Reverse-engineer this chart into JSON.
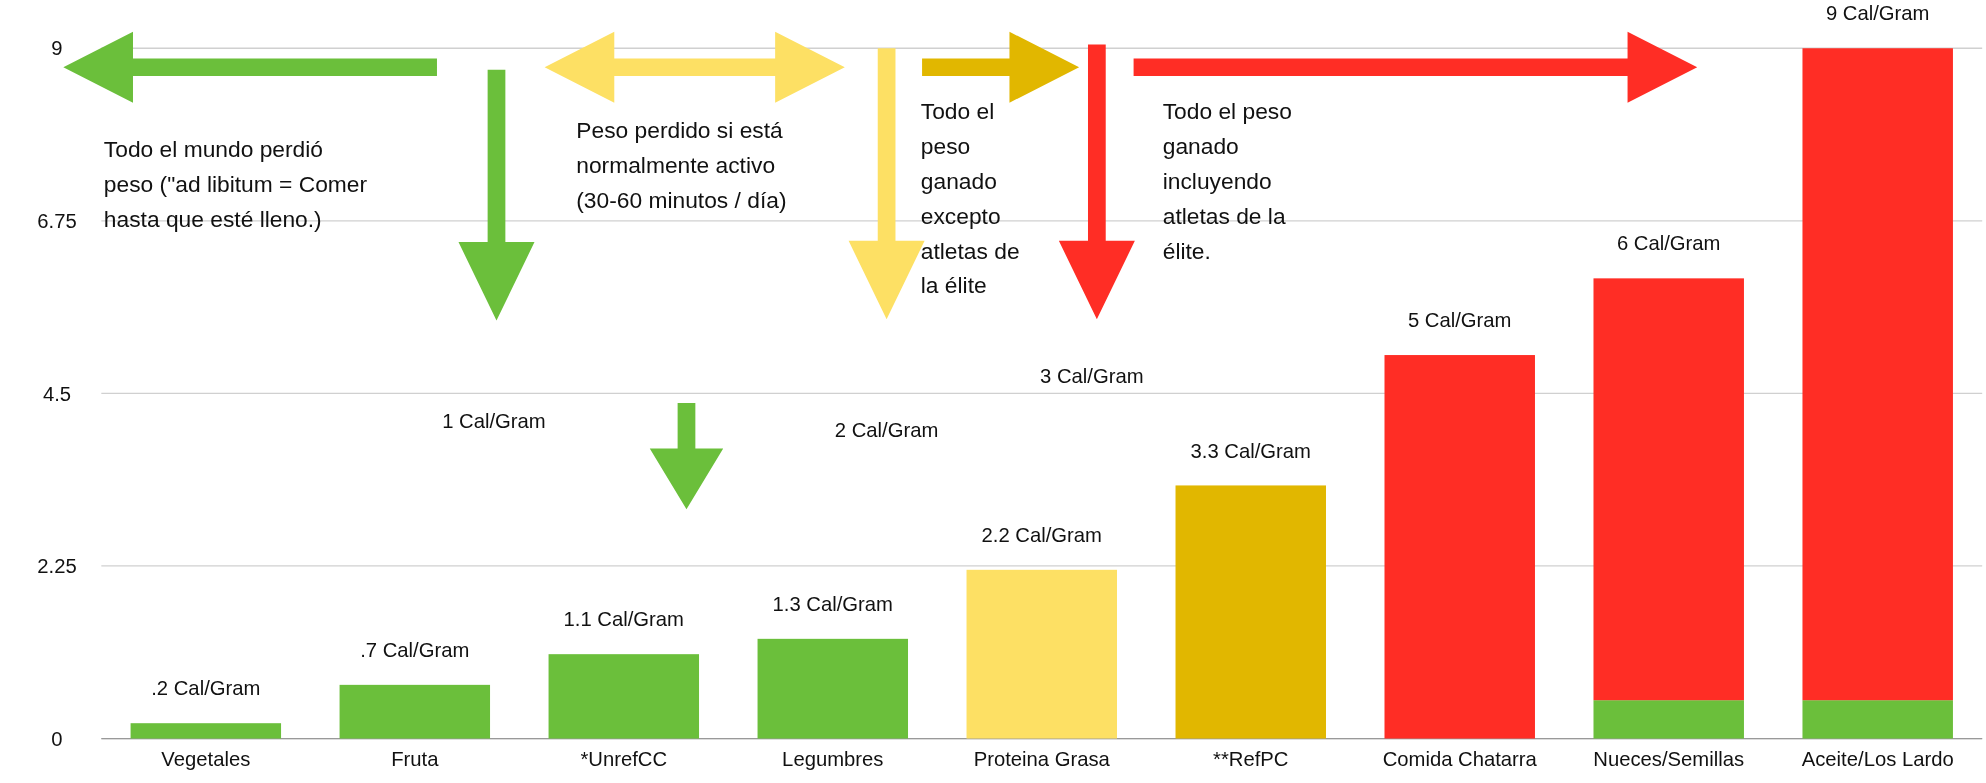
{
  "chart_data": {
    "type": "bar",
    "stacked": true,
    "categories": [
      "Vegetales",
      "Fruta",
      "*UnrefCC",
      "Legumbres",
      "Proteina Grasa",
      "**RefPC",
      "Comida Chatarra",
      "Nueces/Semillas",
      "Aceite/Los Lardo"
    ],
    "series": [
      {
        "colors": [
          "#6bbf3b",
          "#6bbf3b",
          "#6bbf3b",
          "#6bbf3b",
          "#fde064",
          "#e1b700",
          "#ff2d25",
          "#6bbf3b",
          "#6bbf3b"
        ],
        "values": [
          0.2,
          0.7,
          1.1,
          1.3,
          2.2,
          3.3,
          5,
          0.5,
          0.5
        ]
      },
      {
        "color": "#ff2d25",
        "values": [
          null,
          null,
          null,
          null,
          null,
          null,
          null,
          5.5,
          8.5
        ]
      }
    ],
    "totals": [
      ".2 Cal/Gram",
      ".7 Cal/Gram",
      "1.1 Cal/Gram",
      "1.3 Cal/Gram",
      "2.2 Cal/Gram",
      "3.3 Cal/Gram",
      "5 Cal/Gram",
      "6 Cal/Gram",
      "9 Cal/Gram"
    ],
    "ylim": [
      0,
      9
    ],
    "yticks": [
      0,
      2.25,
      4.5,
      6.75,
      9
    ],
    "grid": "y",
    "annotations": [
      "Todo el mundo perdió peso (\"ad libitum = Comer hasta que esté lleno.)",
      "Peso perdido si está normalmente activo (30-60 minutos / día)",
      "Todo el peso ganado excepto atletas de la élite",
      "Todo el peso ganado incluyendo atletas de la élite.",
      "1 Cal/Gram",
      "2 Cal/Gram",
      "3 Cal/Gram"
    ]
  }
}
